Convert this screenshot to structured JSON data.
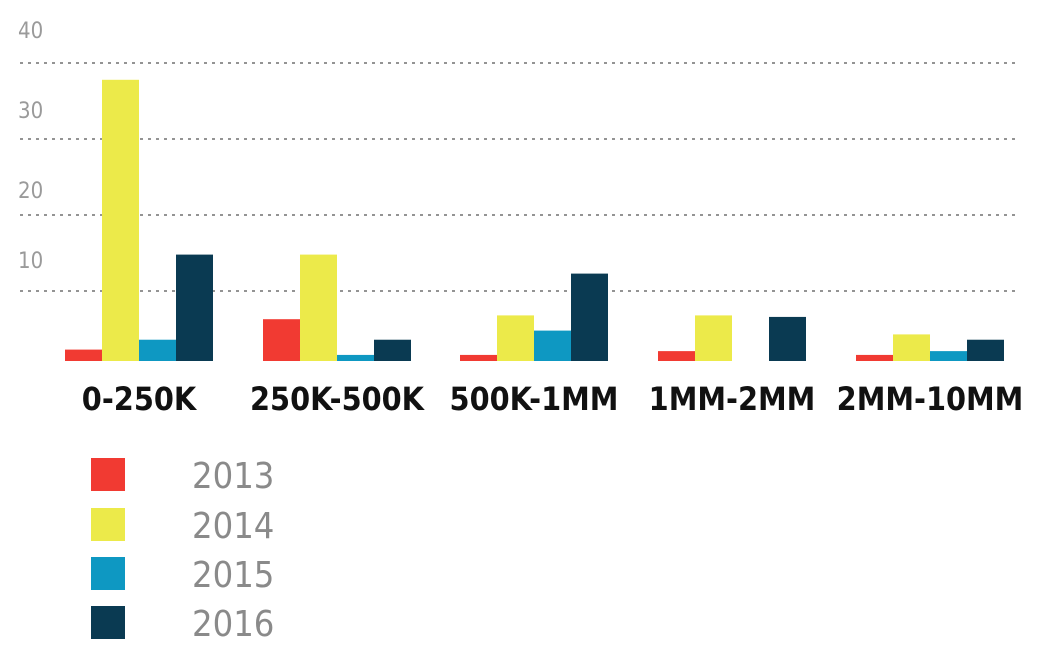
{
  "chart_data": {
    "type": "bar",
    "title": "",
    "xlabel": "",
    "ylabel": "",
    "ylim": [
      0,
      40
    ],
    "y_ticks": [
      "40",
      "30",
      "20",
      "10"
    ],
    "grid": true,
    "legend_position": "bottom-left",
    "categories": [
      "0-250K",
      "250K-500K",
      "500K-1MM",
      "1MM-2MM",
      "2MM-10MM"
    ],
    "series": [
      {
        "name": "2013",
        "color": "#f13a32",
        "values": [
          1.5,
          5.5,
          0.8,
          1.3,
          0.8
        ]
      },
      {
        "name": "2014",
        "color": "#ecea4a",
        "values": [
          37,
          14,
          6,
          6,
          3.5
        ]
      },
      {
        "name": "2015",
        "color": "#0e98c2",
        "values": [
          2.8,
          0.8,
          4,
          0,
          1.3
        ]
      },
      {
        "name": "2016",
        "color": "#0a3a52",
        "values": [
          14,
          2.8,
          11.5,
          5.8,
          2.8
        ]
      }
    ]
  }
}
